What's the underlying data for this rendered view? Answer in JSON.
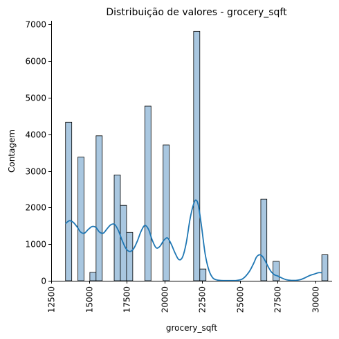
{
  "chart_data": {
    "type": "bar",
    "title": "Distribuição de valores - grocery_sqft",
    "xlabel": "grocery_sqft",
    "ylabel": "Contagem",
    "xlim": [
      12500,
      31100
    ],
    "ylim": [
      0,
      7100
    ],
    "xticks": [
      12500,
      15000,
      17500,
      20000,
      22500,
      25000,
      27500,
      30000
    ],
    "xtick_labels": [
      "12500",
      "15000",
      "17500",
      "20000",
      "22500",
      "25000",
      "27500",
      "30000"
    ],
    "yticks": [
      0,
      1000,
      2000,
      3000,
      4000,
      5000,
      6000,
      7000
    ],
    "ytick_labels": [
      "0",
      "1000",
      "2000",
      "3000",
      "4000",
      "5000",
      "6000",
      "7000"
    ],
    "grid": false,
    "colors": {
      "bar_fill": "#a9c7e0",
      "bar_stroke": "#000000",
      "kde_line": "#1f77b4"
    },
    "bars": [
      {
        "x0": 13450,
        "x1": 13860,
        "count": 4330
      },
      {
        "x0": 14270,
        "x1": 14670,
        "count": 3380
      },
      {
        "x0": 15060,
        "x1": 15470,
        "count": 230
      },
      {
        "x0": 15470,
        "x1": 15880,
        "count": 3960
      },
      {
        "x0": 16670,
        "x1": 17080,
        "count": 2890
      },
      {
        "x0": 17080,
        "x1": 17490,
        "count": 2060
      },
      {
        "x0": 17490,
        "x1": 17900,
        "count": 1320
      },
      {
        "x0": 18700,
        "x1": 19110,
        "count": 4770
      },
      {
        "x0": 19910,
        "x1": 20320,
        "count": 3710
      },
      {
        "x0": 21930,
        "x1": 22340,
        "count": 6810
      },
      {
        "x0": 22340,
        "x1": 22750,
        "count": 320
      },
      {
        "x0": 26380,
        "x1": 26780,
        "count": 2230
      },
      {
        "x0": 27190,
        "x1": 27600,
        "count": 530
      },
      {
        "x0": 30420,
        "x1": 30820,
        "count": 710
      }
    ],
    "kde": {
      "x": [
        13450,
        13700,
        13950,
        14200,
        14450,
        14700,
        14950,
        15200,
        15450,
        15700,
        15950,
        16200,
        16450,
        16700,
        16950,
        17200,
        17450,
        17700,
        17950,
        18200,
        18450,
        18700,
        18950,
        19200,
        19450,
        19700,
        19950,
        20200,
        20450,
        20700,
        20950,
        21200,
        21450,
        21700,
        21950,
        22100,
        22250,
        22450,
        22700,
        22950,
        23200,
        23450,
        23700,
        24000,
        24400,
        24800,
        25200,
        25600,
        25900,
        26100,
        26300,
        26500,
        26700,
        26900,
        27100,
        27300,
        27500,
        27800,
        28100,
        28400,
        28700,
        29000,
        29300,
        29600,
        29900,
        30200,
        30420
      ],
      "y": [
        1560,
        1640,
        1600,
        1480,
        1330,
        1300,
        1400,
        1480,
        1460,
        1330,
        1300,
        1420,
        1530,
        1540,
        1370,
        1100,
        880,
        800,
        870,
        1080,
        1350,
        1510,
        1400,
        1100,
        900,
        940,
        1100,
        1170,
        1000,
        760,
        580,
        650,
        1050,
        1700,
        2120,
        2200,
        2050,
        1500,
        720,
        280,
        80,
        25,
        10,
        5,
        5,
        10,
        60,
        240,
        470,
        650,
        710,
        660,
        520,
        360,
        230,
        160,
        130,
        70,
        25,
        10,
        10,
        30,
        80,
        140,
        180,
        220,
        220
      ]
    }
  }
}
